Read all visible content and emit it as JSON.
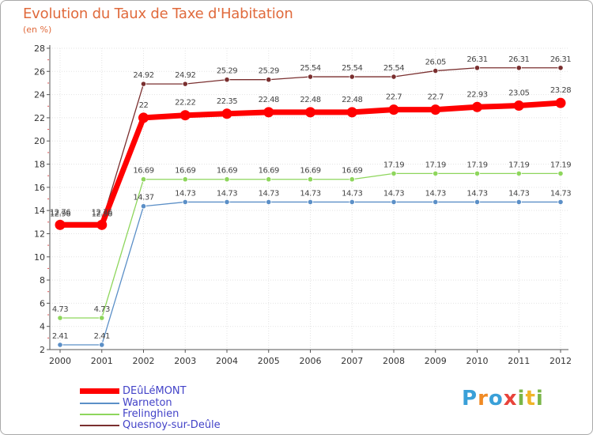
{
  "title": "Evolution du Taux de Taxe d'Habitation",
  "subtitle": "(en %)",
  "logo": {
    "letters": [
      "P",
      "r",
      "o",
      "x",
      "i",
      "t",
      "i"
    ],
    "colors": [
      "#3aa0d8",
      "#f08a24",
      "#3aa0d8",
      "#e8433a",
      "#7ab648",
      "#f0b428",
      "#7ab648"
    ]
  },
  "chart_data": {
    "type": "line",
    "x": [
      "2000",
      "2001",
      "2002",
      "2003",
      "2004",
      "2005",
      "2006",
      "2007",
      "2008",
      "2009",
      "2010",
      "2011",
      "2012"
    ],
    "ylim": [
      2,
      28
    ],
    "yticks": [
      "2",
      "4",
      "6",
      "8",
      "10",
      "12",
      "14",
      "16",
      "18",
      "20",
      "22",
      "24",
      "26",
      "28"
    ],
    "grid": true,
    "legend_position": "bottom",
    "series": [
      {
        "name": "DEûLéMONT",
        "color": "#ff0000",
        "values": [
          12.76,
          12.76,
          22,
          22.22,
          22.35,
          22.48,
          22.48,
          22.48,
          22.7,
          22.7,
          22.93,
          23.05,
          23.28
        ],
        "labels": [
          "12.76",
          "12.76",
          "22",
          "22.22",
          "22.35",
          "22.48",
          "22.48",
          "22.48",
          "22.7",
          "22.7",
          "22.93",
          "23.05",
          "23.28"
        ]
      },
      {
        "name": "Warneton",
        "color": "#5b8fc7",
        "values": [
          2.41,
          2.41,
          14.37,
          14.73,
          14.73,
          14.73,
          14.73,
          14.73,
          14.73,
          14.73,
          14.73,
          14.73,
          14.73
        ],
        "labels": [
          "2.41",
          "2.41",
          "14.37",
          "14.73",
          "14.73",
          "14.73",
          "14.73",
          "14.73",
          "14.73",
          "14.73",
          "14.73",
          "14.73",
          "14.73"
        ]
      },
      {
        "name": "Frelinghien",
        "color": "#8ed65c",
        "values": [
          4.73,
          4.73,
          16.69,
          16.69,
          16.69,
          16.69,
          16.69,
          16.69,
          17.19,
          17.19,
          17.19,
          17.19,
          17.19
        ],
        "labels": [
          "4.73",
          "4.73",
          "16.69",
          "16.69",
          "16.69",
          "16.69",
          "16.69",
          "16.69",
          "17.19",
          "17.19",
          "17.19",
          "17.19",
          "17.19"
        ]
      },
      {
        "name": "Quesnoy-sur-Deûle",
        "color": "#7a2f2f",
        "values": [
          12.96,
          12.96,
          24.92,
          24.92,
          25.29,
          25.29,
          25.54,
          25.54,
          25.54,
          26.05,
          26.31,
          26.31,
          26.31
        ],
        "labels": [
          "12.96",
          "12.96",
          "24.92",
          "24.92",
          "25.29",
          "25.29",
          "25.54",
          "25.54",
          "25.54",
          "26.05",
          "26.31",
          "26.31",
          "26.31"
        ]
      }
    ]
  }
}
